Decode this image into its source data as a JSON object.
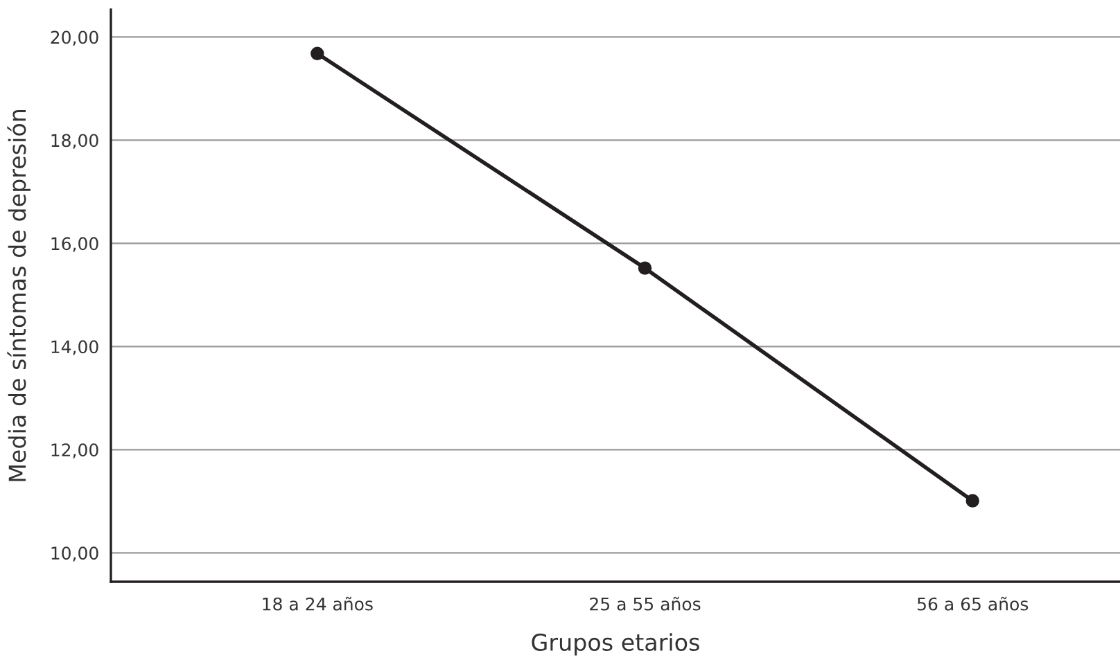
{
  "chart_data": {
    "type": "line",
    "xlabel": "Grupos etarios",
    "ylabel": "Media de síntomas de depresión",
    "categories": [
      "18 a 24 años",
      "25 a 55 años",
      "56 a 65 años"
    ],
    "series": [
      {
        "color": "#231f20",
        "values": [
          19.68,
          15.52,
          11.01
        ]
      }
    ],
    "ylim": [
      9.44,
      20.53
    ],
    "yticks": [
      {
        "value": 10,
        "label": "10,00"
      },
      {
        "value": 12,
        "label": "12,00"
      },
      {
        "value": 14,
        "label": "14,00"
      },
      {
        "value": 16,
        "label": "16,00"
      },
      {
        "value": 18,
        "label": "18,00"
      },
      {
        "value": 20,
        "label": "20,00"
      }
    ],
    "grid": "y",
    "marker": "circle",
    "line_style": "solid",
    "legend": false
  }
}
